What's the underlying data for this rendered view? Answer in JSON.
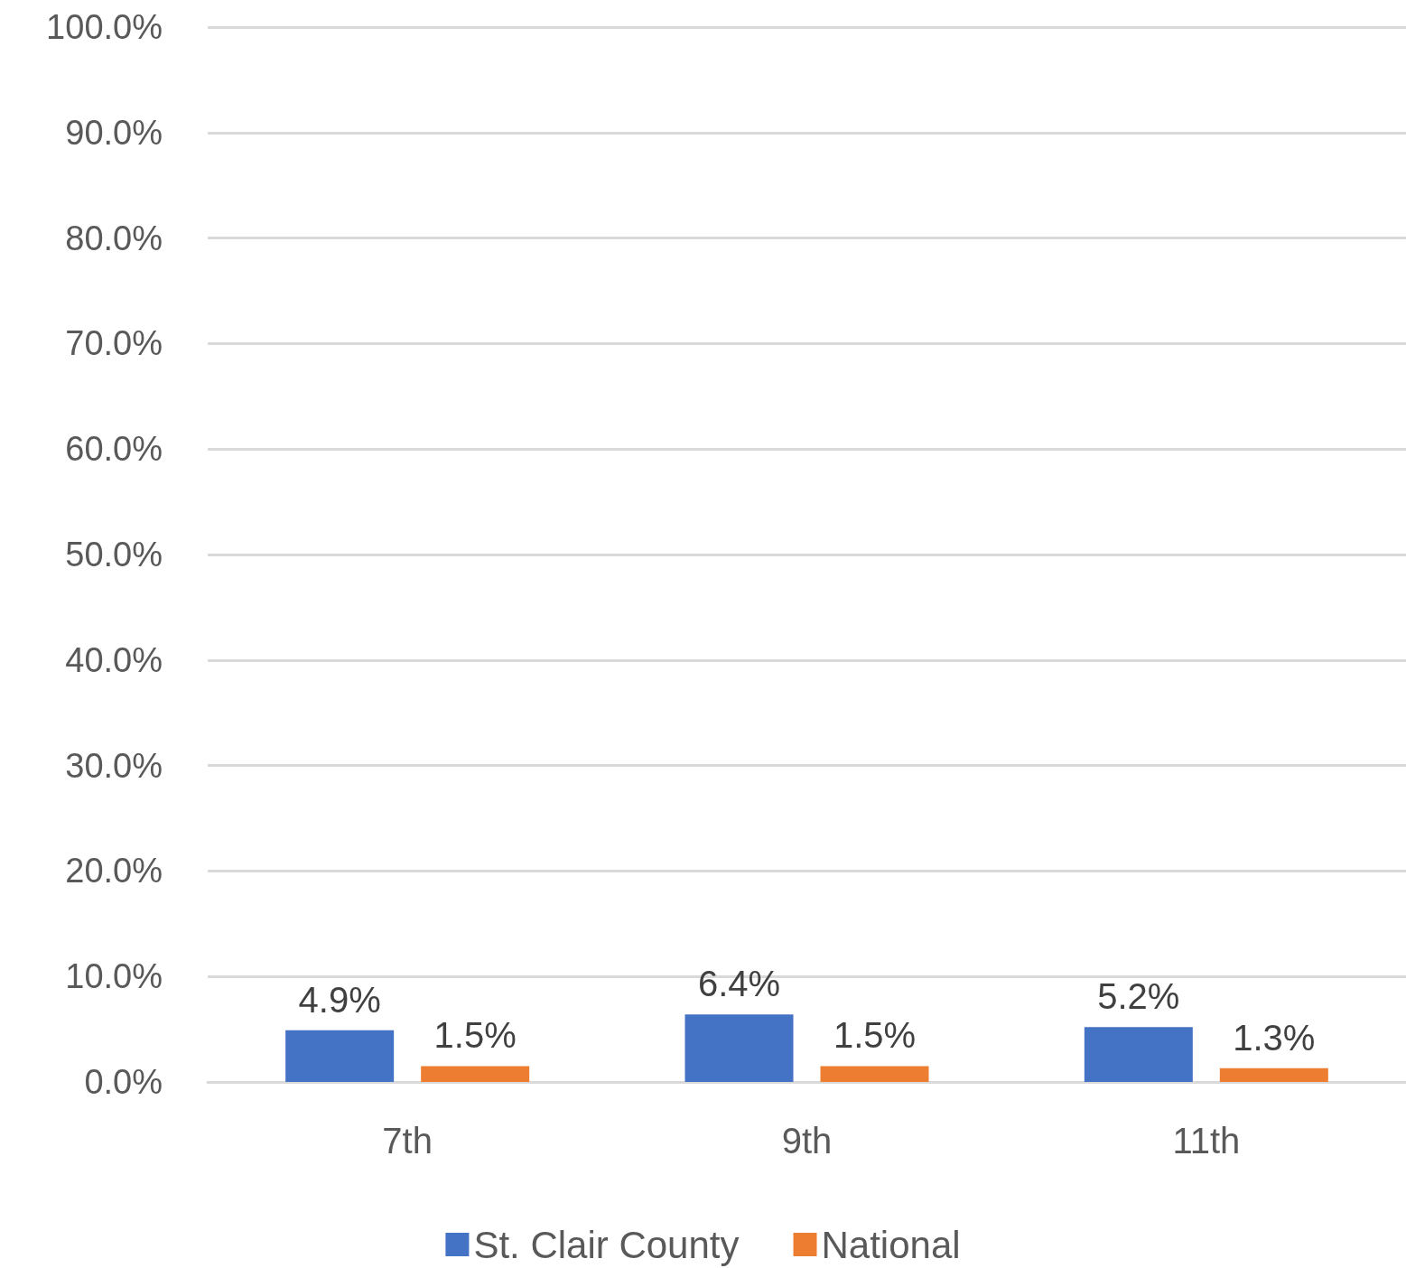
{
  "chart_data": {
    "type": "bar",
    "categories": [
      "7th",
      "9th",
      "11th"
    ],
    "series": [
      {
        "name": "St. Clair County",
        "color": "#4472c4",
        "values": [
          4.9,
          6.4,
          5.2
        ],
        "value_labels": [
          "4.9%",
          "6.4%",
          "5.2%"
        ]
      },
      {
        "name": "National",
        "color": "#ed7d31",
        "values": [
          1.5,
          1.5,
          1.3
        ],
        "value_labels": [
          "1.5%",
          "1.5%",
          "1.3%"
        ]
      }
    ],
    "ylim": [
      0,
      100
    ],
    "yticks": [
      {
        "value": 0,
        "label": "0.0%"
      },
      {
        "value": 10,
        "label": "10.0%"
      },
      {
        "value": 20,
        "label": "20.0%"
      },
      {
        "value": 30,
        "label": "30.0%"
      },
      {
        "value": 40,
        "label": "40.0%"
      },
      {
        "value": 50,
        "label": "50.0%"
      },
      {
        "value": 60,
        "label": "60.0%"
      },
      {
        "value": 70,
        "label": "70.0%"
      },
      {
        "value": 80,
        "label": "80.0%"
      },
      {
        "value": 90,
        "label": "90.0%"
      },
      {
        "value": 100,
        "label": "100.0%"
      }
    ],
    "grid": "y",
    "legend": "bottom"
  }
}
